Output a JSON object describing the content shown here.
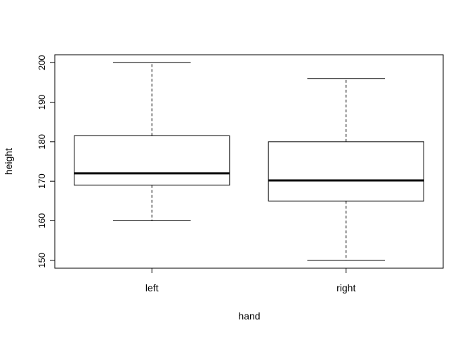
{
  "chart_data": {
    "type": "boxplot",
    "title": "",
    "xlabel": "hand",
    "ylabel": "height",
    "categories": [
      "left",
      "right"
    ],
    "boxes": [
      {
        "name": "left",
        "whisker_low": 160,
        "q1": 169,
        "median": 172,
        "q3": 181.5,
        "whisker_high": 200
      },
      {
        "name": "right",
        "whisker_low": 150,
        "q1": 165,
        "median": 170.2,
        "q3": 180,
        "whisker_high": 196
      }
    ],
    "ylim": [
      148,
      202
    ],
    "yticks": [
      150,
      160,
      170,
      180,
      190,
      200
    ],
    "grid": false,
    "legend": "none"
  }
}
